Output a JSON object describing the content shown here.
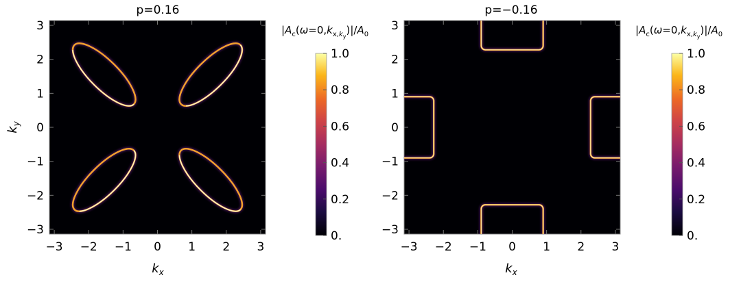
{
  "chart_data": [
    {
      "type": "heatmap",
      "title": "p=0.16",
      "xlabel": "k_x",
      "ylabel": "k_y",
      "xlim": [
        -3.14159,
        3.14159
      ],
      "ylim": [
        -3.14159,
        3.14159
      ],
      "x_ticks": [
        -3,
        -2,
        -1,
        0,
        1,
        2,
        3
      ],
      "y_ticks": [
        -3,
        -2,
        -1,
        0,
        1,
        2,
        3
      ],
      "x_tick_labels": [
        "−3",
        "−2",
        "−1",
        "0",
        "1",
        "2",
        "3"
      ],
      "y_tick_labels": [
        "−3",
        "−2",
        "−1",
        "0",
        "1",
        "2",
        "3"
      ],
      "background_value": 0,
      "features": [
        {
          "shape": "elliptical_pocket",
          "center": [
            -1.55,
            1.55
          ],
          "semi_axes": [
            1.22,
            0.42
          ],
          "angle_deg": 45,
          "peak": 1.0
        },
        {
          "shape": "elliptical_pocket",
          "center": [
            1.55,
            1.55
          ],
          "semi_axes": [
            1.22,
            0.42
          ],
          "angle_deg": -45,
          "peak": 1.0
        },
        {
          "shape": "elliptical_pocket",
          "center": [
            -1.55,
            -1.55
          ],
          "semi_axes": [
            1.22,
            0.42
          ],
          "angle_deg": -45,
          "peak": 1.0
        },
        {
          "shape": "elliptical_pocket",
          "center": [
            1.55,
            -1.55
          ],
          "semi_axes": [
            1.22,
            0.42
          ],
          "angle_deg": 45,
          "peak": 1.0
        }
      ],
      "colorbar": {
        "label": "|A_c(ω=0,k_x,k_y)|/A_0",
        "range": [
          0,
          1
        ],
        "ticks": [
          0,
          0.2,
          0.4,
          0.6,
          0.8,
          1.0
        ],
        "tick_labels": [
          "0.",
          "0.2",
          "0.4",
          "0.6",
          "0.8",
          "1.0"
        ],
        "colormap": "inferno"
      }
    },
    {
      "type": "heatmap",
      "title": "p=−0.16",
      "xlabel": "k_x",
      "ylabel": "",
      "xlim": [
        -3.14159,
        3.14159
      ],
      "ylim": [
        -3.14159,
        3.14159
      ],
      "x_ticks": [
        -3,
        -2,
        -1,
        0,
        1,
        2,
        3
      ],
      "y_ticks": [
        -3,
        -2,
        -1,
        0,
        1,
        2,
        3
      ],
      "x_tick_labels": [
        "−3",
        "−2",
        "−1",
        "0",
        "1",
        "2",
        "3"
      ],
      "y_tick_labels": [
        "−3",
        "−2",
        "−1",
        "0",
        "1",
        "2",
        "3"
      ],
      "background_value": 0,
      "features": [
        {
          "shape": "pocket_at_edge",
          "side": "top",
          "kx_range": [
            -0.9,
            0.9
          ],
          "ky_range": [
            2.28,
            3.14159
          ],
          "peak": 1.0
        },
        {
          "shape": "pocket_at_edge",
          "side": "bottom",
          "kx_range": [
            -0.9,
            0.9
          ],
          "ky_range": [
            -3.14159,
            -2.28
          ],
          "peak": 1.0
        },
        {
          "shape": "pocket_at_edge",
          "side": "left",
          "kx_range": [
            -3.14159,
            -2.28
          ],
          "ky_range": [
            -0.9,
            0.9
          ],
          "peak": 1.0
        },
        {
          "shape": "pocket_at_edge",
          "side": "right",
          "kx_range": [
            2.28,
            3.14159
          ],
          "ky_range": [
            -0.9,
            0.9
          ],
          "peak": 1.0
        }
      ],
      "colorbar": {
        "label": "|A_c(ω=0,k_x,k_y)|/A_0",
        "range": [
          0,
          1
        ],
        "ticks": [
          0,
          0.2,
          0.4,
          0.6,
          0.8,
          1.0
        ],
        "tick_labels": [
          "0.",
          "0.2",
          "0.4",
          "0.6",
          "0.8",
          "1.0"
        ],
        "colormap": "inferno"
      }
    }
  ]
}
